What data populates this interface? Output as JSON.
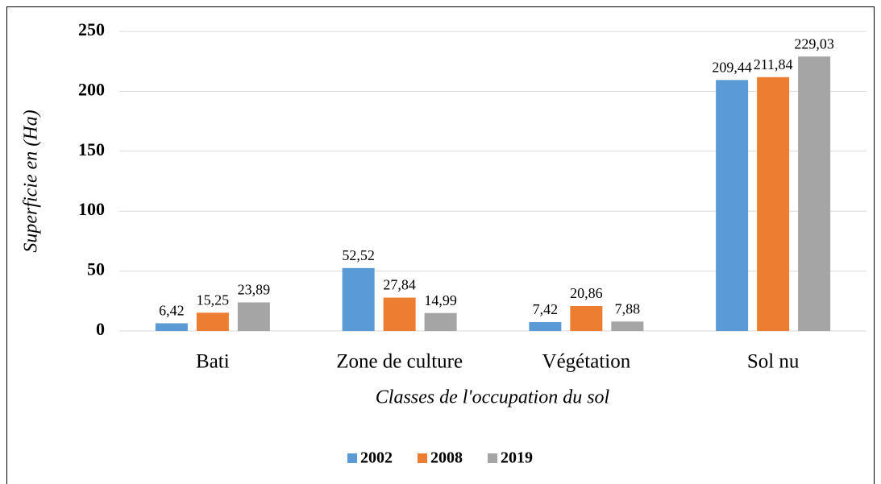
{
  "chart_data": {
    "type": "bar",
    "x_label": "Classes de l'occupation du sol",
    "y_label": "Superficie en (Ha)",
    "categories": [
      "Bati",
      "Zone de culture",
      "Végétation",
      "Sol nu"
    ],
    "series": [
      {
        "name": "2002",
        "color": "#5b9bd5",
        "values": [
          6.42,
          52.52,
          7.42,
          209.44
        ],
        "value_labels": [
          "6,42",
          "52,52",
          "7,42",
          "209,44"
        ]
      },
      {
        "name": "2008",
        "color": "#ed7d31",
        "values": [
          15.25,
          27.84,
          20.86,
          211.84
        ],
        "value_labels": [
          "15,25",
          "27,84",
          "20,86",
          "211,84"
        ]
      },
      {
        "name": "2019",
        "color": "#a5a5a5",
        "values": [
          23.89,
          14.99,
          7.88,
          229.03
        ],
        "value_labels": [
          "23,89",
          "14,99",
          "7,88",
          "229,03"
        ]
      }
    ],
    "ylim": [
      0,
      250
    ],
    "yticks": [
      0,
      50,
      100,
      150,
      200,
      250
    ],
    "grid": true,
    "legend": "bottom"
  }
}
